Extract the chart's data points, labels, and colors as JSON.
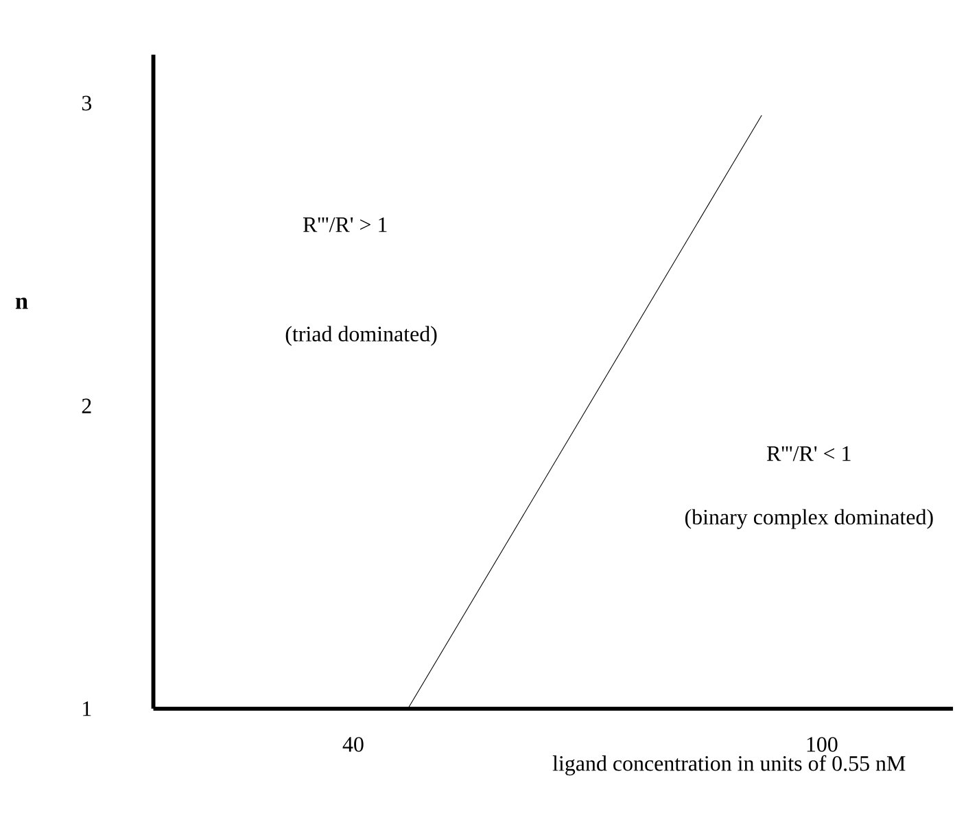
{
  "chart_data": {
    "type": "line",
    "xlabel": "ligand concentration in units of 0.55 nM",
    "ylabel": "n",
    "x": [
      47,
      92.3
    ],
    "series": [
      {
        "color": "#000000",
        "values": [
          1,
          2.96
        ]
      }
    ],
    "xlim": [
      14.4,
      116.8
    ],
    "ylim": [
      1,
      3.16
    ],
    "xticks": [
      40,
      100
    ],
    "yticks": [
      1,
      2,
      3
    ],
    "marker": "none",
    "line_style": "solid",
    "annotations": [
      "R'''/R' > 1",
      "(triad dominated)",
      "R'''/R' < 1",
      "(binary complex dominated)"
    ]
  }
}
